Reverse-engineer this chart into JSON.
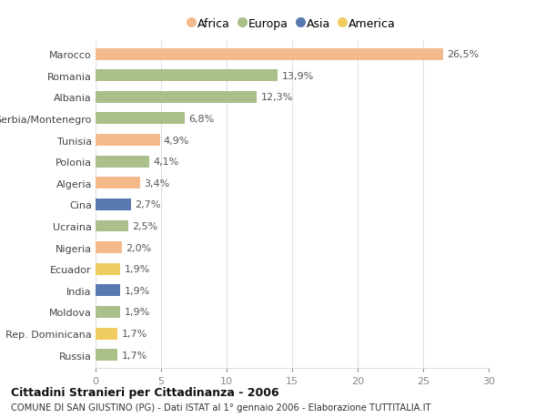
{
  "countries": [
    "Marocco",
    "Romania",
    "Albania",
    "Serbia/Montenegro",
    "Tunisia",
    "Polonia",
    "Algeria",
    "Cina",
    "Ucraina",
    "Nigeria",
    "Ecuador",
    "India",
    "Moldova",
    "Rep. Dominicana",
    "Russia"
  ],
  "values": [
    26.5,
    13.9,
    12.3,
    6.8,
    4.9,
    4.1,
    3.4,
    2.7,
    2.5,
    2.0,
    1.9,
    1.9,
    1.9,
    1.7,
    1.7
  ],
  "labels": [
    "26,5%",
    "13,9%",
    "12,3%",
    "6,8%",
    "4,9%",
    "4,1%",
    "3,4%",
    "2,7%",
    "2,5%",
    "2,0%",
    "1,9%",
    "1,9%",
    "1,9%",
    "1,7%",
    "1,7%"
  ],
  "continents": [
    "Africa",
    "Europa",
    "Europa",
    "Europa",
    "Africa",
    "Europa",
    "Africa",
    "Asia",
    "Europa",
    "Africa",
    "America",
    "Asia",
    "Europa",
    "America",
    "Europa"
  ],
  "continent_colors": {
    "Africa": "#F5BA8C",
    "Europa": "#AABF8A",
    "Asia": "#5878B0",
    "America": "#F0CC60"
  },
  "legend_order": [
    "Africa",
    "Europa",
    "Asia",
    "America"
  ],
  "title1": "Cittadini Stranieri per Cittadinanza - 2006",
  "title2": "COMUNE DI SAN GIUSTINO (PG) - Dati ISTAT al 1° gennaio 2006 - Elaborazione TUTTITALIA.IT",
  "xlim": [
    0,
    30
  ],
  "xticks": [
    0,
    5,
    10,
    15,
    20,
    25,
    30
  ],
  "background_color": "#ffffff",
  "bar_height": 0.55,
  "grid_color": "#e0e0e0",
  "label_fontsize": 8,
  "ytick_fontsize": 8,
  "xtick_fontsize": 8
}
